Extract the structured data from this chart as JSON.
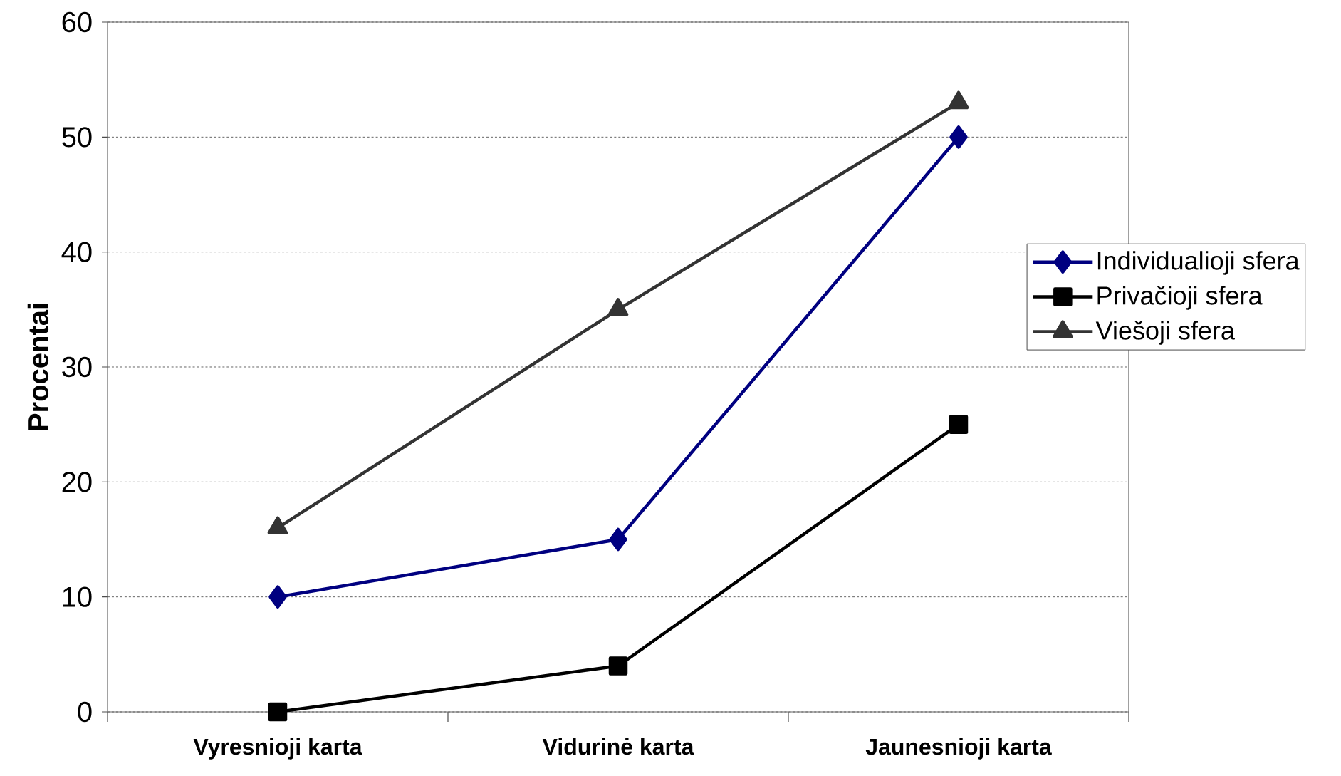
{
  "chart_data": {
    "type": "line",
    "ylabel": "Procentai",
    "categories": [
      "Vyresnioji karta",
      "Vidurinė karta",
      "Jaunesnioji karta"
    ],
    "series": [
      {
        "name": "Individualioji sfera",
        "color": "#000080",
        "marker": "diamond",
        "values": [
          10,
          15,
          50
        ]
      },
      {
        "name": "Privačioji sfera",
        "color": "#000000",
        "marker": "square",
        "values": [
          0,
          4,
          25
        ]
      },
      {
        "name": "Viešoji sfera",
        "color": "#333333",
        "marker": "triangle",
        "values": [
          16,
          35,
          53
        ]
      }
    ],
    "ylim": [
      0,
      60
    ],
    "yticks": [
      0,
      10,
      20,
      30,
      40,
      50,
      60
    ],
    "grid": "y",
    "legend": "right",
    "line_style": "solid"
  }
}
